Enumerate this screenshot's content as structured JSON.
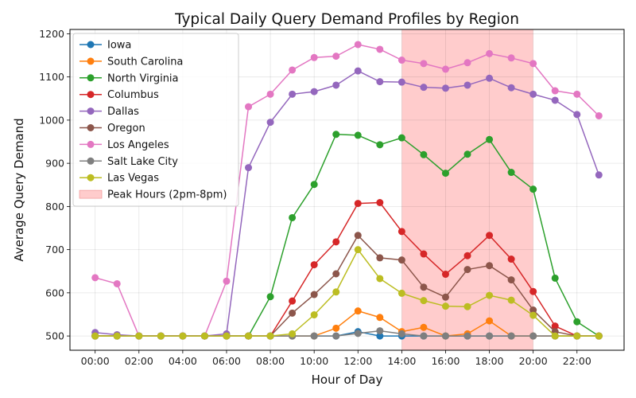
{
  "chart_data": {
    "type": "line",
    "title": "Typical Daily Query Demand Profiles by Region",
    "xlabel": "Hour of Day",
    "ylabel": "Average Query Demand",
    "x": [
      0,
      1,
      2,
      3,
      4,
      5,
      6,
      7,
      8,
      9,
      10,
      11,
      12,
      13,
      14,
      15,
      16,
      17,
      18,
      19,
      20,
      21,
      22,
      23
    ],
    "xticks": [
      0,
      2,
      4,
      6,
      8,
      10,
      12,
      14,
      16,
      18,
      20,
      22
    ],
    "xtick_labels": [
      "00:00",
      "02:00",
      "04:00",
      "06:00",
      "08:00",
      "10:00",
      "12:00",
      "14:00",
      "16:00",
      "18:00",
      "20:00",
      "22:00"
    ],
    "xlim": [
      -1.15,
      24.15
    ],
    "yticks": [
      500,
      600,
      700,
      800,
      900,
      1000,
      1100,
      1200
    ],
    "ylim": [
      467,
      1210
    ],
    "grid": true,
    "legend_position": "top-left",
    "shaded_region": {
      "label": "Peak Hours (2pm-8pm)",
      "x_start": 14,
      "x_end": 20,
      "color": "#ff9999"
    },
    "series": [
      {
        "name": "Iowa",
        "color": "#1f77b4",
        "values": [
          500,
          500,
          500,
          500,
          500,
          500,
          500,
          500,
          500,
          500,
          500,
          500,
          510,
          500,
          500,
          500,
          500,
          500,
          500,
          500,
          500,
          500,
          500,
          500
        ]
      },
      {
        "name": "South Carolina",
        "color": "#ff7f0e",
        "values": [
          500,
          500,
          500,
          500,
          500,
          500,
          500,
          500,
          500,
          500,
          500,
          518,
          558,
          543,
          510,
          520,
          500,
          505,
          535,
          500,
          500,
          500,
          500,
          500
        ]
      },
      {
        "name": "North Virginia",
        "color": "#2ca02c",
        "values": [
          500,
          500,
          500,
          500,
          500,
          500,
          500,
          500,
          591,
          774,
          851,
          967,
          965,
          943,
          959,
          920,
          877,
          921,
          955,
          879,
          840,
          634,
          533,
          500
        ]
      },
      {
        "name": "Columbus",
        "color": "#d62728",
        "values": [
          500,
          500,
          500,
          500,
          500,
          500,
          500,
          500,
          500,
          581,
          665,
          718,
          807,
          809,
          742,
          690,
          643,
          686,
          733,
          678,
          603,
          523,
          500,
          500
        ]
      },
      {
        "name": "Dallas",
        "color": "#9467bd",
        "values": [
          508,
          503,
          500,
          500,
          500,
          500,
          505,
          890,
          995,
          1060,
          1066,
          1081,
          1114,
          1089,
          1088,
          1076,
          1074,
          1081,
          1097,
          1075,
          1060,
          1046,
          1013,
          873
        ]
      },
      {
        "name": "Oregon",
        "color": "#8c564b",
        "values": [
          500,
          500,
          500,
          500,
          500,
          500,
          500,
          500,
          500,
          553,
          596,
          644,
          733,
          681,
          676,
          613,
          590,
          654,
          663,
          630,
          560,
          510,
          500,
          500
        ]
      },
      {
        "name": "Los Angeles",
        "color": "#e377c2",
        "values": [
          635,
          621,
          500,
          500,
          500,
          500,
          627,
          1031,
          1060,
          1116,
          1145,
          1148,
          1175,
          1164,
          1139,
          1131,
          1118,
          1133,
          1154,
          1144,
          1131,
          1068,
          1060,
          1010
        ]
      },
      {
        "name": "Salt Lake City",
        "color": "#7f7f7f",
        "values": [
          500,
          500,
          500,
          500,
          500,
          500,
          500,
          500,
          500,
          500,
          500,
          500,
          506,
          512,
          505,
          500,
          500,
          500,
          500,
          500,
          500,
          500,
          500,
          500
        ]
      },
      {
        "name": "Las Vegas",
        "color": "#bcbd22",
        "values": [
          500,
          500,
          500,
          500,
          500,
          500,
          500,
          500,
          500,
          505,
          549,
          602,
          700,
          633,
          599,
          582,
          569,
          568,
          594,
          583,
          548,
          500,
          500,
          500
        ]
      }
    ]
  }
}
